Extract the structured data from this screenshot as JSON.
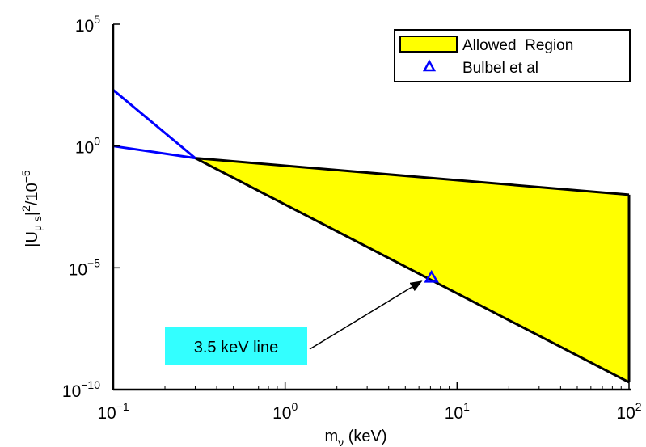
{
  "chart_data": {
    "type": "area",
    "title": "",
    "xlabel": {
      "main": "m",
      "sub": "ν",
      "rest": " (keV)"
    },
    "ylabel": {
      "a": "|U",
      "sub": "μ s",
      "b": "|",
      "sup1": "2",
      "c": "/10",
      "sup2": "−5"
    },
    "x_scale": "log",
    "y_scale": "log",
    "xlim": [
      0.1,
      100
    ],
    "ylim": [
      1e-10,
      100000
    ],
    "x_ticks": [
      {
        "value": 0.1,
        "base": "10",
        "exp": "−1"
      },
      {
        "value": 1,
        "base": "10",
        "exp": "0"
      },
      {
        "value": 10,
        "base": "10",
        "exp": "1"
      },
      {
        "value": 100,
        "base": "10",
        "exp": "2"
      }
    ],
    "y_ticks": [
      {
        "value": 1e-10,
        "base": "10",
        "exp": "−10"
      },
      {
        "value": 1e-05,
        "base": "10",
        "exp": "−5"
      },
      {
        "value": 1,
        "base": "10",
        "exp": "0"
      },
      {
        "value": 100000,
        "base": "10",
        "exp": "5"
      }
    ],
    "grid": false,
    "legend_position": "top-right",
    "legend": [
      {
        "label": "Allowed  Region",
        "type": "patch",
        "color": "#ffff00"
      },
      {
        "label": "Bulbel et al",
        "type": "marker",
        "marker": "triangle",
        "color": "#0000ff"
      }
    ],
    "allowed_region": {
      "color": "#ffff00",
      "vertices": [
        {
          "x": 0.3,
          "y": 0.32
        },
        {
          "x": 100,
          "y": 0.01
        },
        {
          "x": 100,
          "y": 2e-10
        },
        {
          "x": 0.3,
          "y": 0.32
        }
      ]
    },
    "series": [
      {
        "kind": "line",
        "color": "#000000",
        "x": [
          0.3,
          100
        ],
        "y": [
          0.32,
          0.01
        ]
      },
      {
        "kind": "line",
        "color": "#000000",
        "x": [
          0.3,
          100
        ],
        "y": [
          0.32,
          2e-10
        ]
      },
      {
        "kind": "line",
        "color": "#000000",
        "x": [
          100,
          100
        ],
        "y": [
          0.01,
          2e-10
        ]
      },
      {
        "kind": "line",
        "color": "#0000ff",
        "x": [
          0.1,
          0.3
        ],
        "y": [
          200,
          0.32
        ]
      },
      {
        "kind": "line",
        "color": "#0000ff",
        "x": [
          0.1,
          0.3
        ],
        "y": [
          1,
          0.32
        ]
      }
    ],
    "points": [
      {
        "name": "Bulbel et al",
        "x": 7.1,
        "y": 4e-06,
        "marker": "triangle",
        "color": "#0000ff"
      }
    ],
    "annotations": [
      {
        "text": "3.5 keV line",
        "box_color": "#33ffff",
        "arrow_to": {
          "x": 6.2,
          "y": 2.8e-06
        }
      }
    ]
  }
}
